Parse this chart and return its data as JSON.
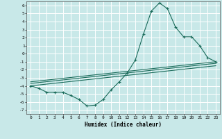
{
  "xlabel": "Humidex (Indice chaleur)",
  "bg_color": "#c8e8e8",
  "grid_color": "#ffffff",
  "line_color": "#1a6b5a",
  "xlim": [
    -0.5,
    23.5
  ],
  "ylim": [
    -7.5,
    6.5
  ],
  "xticks": [
    0,
    1,
    2,
    3,
    4,
    5,
    6,
    7,
    8,
    9,
    10,
    11,
    12,
    13,
    14,
    15,
    16,
    17,
    18,
    19,
    20,
    21,
    22,
    23
  ],
  "yticks": [
    6,
    5,
    4,
    3,
    2,
    1,
    0,
    -1,
    -2,
    -3,
    -4,
    -5,
    -6,
    -7
  ],
  "series1_x": [
    0,
    1,
    2,
    3,
    4,
    5,
    6,
    7,
    8,
    9,
    10,
    11,
    12,
    13,
    14,
    15,
    16,
    17,
    18,
    19,
    20,
    21,
    22,
    23
  ],
  "series1_y": [
    -4.0,
    -4.3,
    -4.8,
    -4.8,
    -4.8,
    -5.2,
    -5.7,
    -6.5,
    -6.4,
    -5.7,
    -4.5,
    -3.5,
    -2.4,
    -0.8,
    2.4,
    5.3,
    6.3,
    5.6,
    3.3,
    2.1,
    2.1,
    1.0,
    -0.5,
    -1.0
  ],
  "series2_x": [
    0,
    23
  ],
  "series2_y": [
    -4.0,
    -1.5
  ],
  "series3_x": [
    0,
    23
  ],
  "series3_y": [
    -3.7,
    -1.2
  ],
  "series4_x": [
    0,
    23
  ],
  "series4_y": [
    -3.5,
    -1.0
  ]
}
